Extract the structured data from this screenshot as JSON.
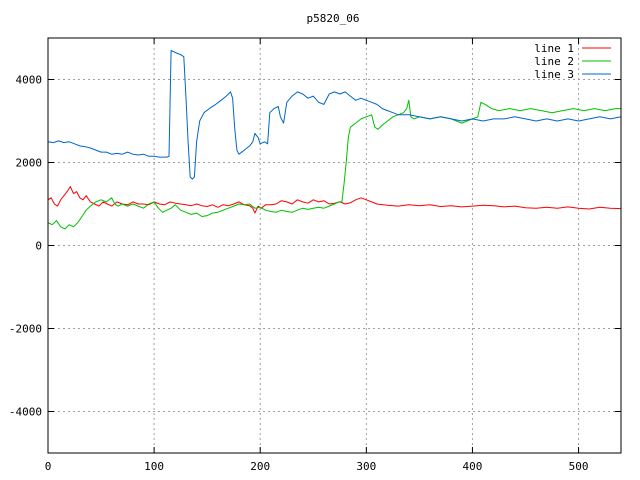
{
  "chart_data": {
    "type": "line",
    "title": "p5820_06",
    "xlabel": "",
    "ylabel": "",
    "xlim": [
      0,
      540
    ],
    "ylim": [
      -5000,
      5000
    ],
    "xticks": [
      0,
      100,
      200,
      300,
      400,
      500
    ],
    "yticks": [
      -4000,
      -2000,
      0,
      2000,
      4000
    ],
    "grid": true,
    "legend_position": "top-right",
    "series": [
      {
        "name": "line 1",
        "color": "#ff0000",
        "points": [
          [
            0,
            1100
          ],
          [
            3,
            1150
          ],
          [
            6,
            1000
          ],
          [
            9,
            950
          ],
          [
            12,
            1100
          ],
          [
            15,
            1200
          ],
          [
            18,
            1300
          ],
          [
            21,
            1420
          ],
          [
            24,
            1250
          ],
          [
            27,
            1300
          ],
          [
            30,
            1150
          ],
          [
            33,
            1100
          ],
          [
            36,
            1200
          ],
          [
            40,
            1050
          ],
          [
            44,
            1000
          ],
          [
            48,
            950
          ],
          [
            52,
            1050
          ],
          [
            56,
            1000
          ],
          [
            60,
            950
          ],
          [
            65,
            1050
          ],
          [
            70,
            1000
          ],
          [
            75,
            980
          ],
          [
            80,
            1050
          ],
          [
            85,
            1000
          ],
          [
            90,
            1000
          ],
          [
            95,
            980
          ],
          [
            100,
            1050
          ],
          [
            105,
            1000
          ],
          [
            110,
            980
          ],
          [
            115,
            1050
          ],
          [
            120,
            1020
          ],
          [
            125,
            1000
          ],
          [
            130,
            980
          ],
          [
            135,
            960
          ],
          [
            140,
            1000
          ],
          [
            145,
            960
          ],
          [
            150,
            940
          ],
          [
            155,
            980
          ],
          [
            160,
            920
          ],
          [
            165,
            980
          ],
          [
            170,
            960
          ],
          [
            175,
            1000
          ],
          [
            180,
            1050
          ],
          [
            185,
            980
          ],
          [
            190,
            960
          ],
          [
            193,
            900
          ],
          [
            195,
            780
          ],
          [
            198,
            950
          ],
          [
            201,
            900
          ],
          [
            205,
            980
          ],
          [
            210,
            980
          ],
          [
            215,
            1000
          ],
          [
            220,
            1080
          ],
          [
            225,
            1050
          ],
          [
            230,
            1000
          ],
          [
            235,
            1100
          ],
          [
            240,
            1050
          ],
          [
            245,
            1020
          ],
          [
            250,
            1100
          ],
          [
            255,
            1050
          ],
          [
            260,
            1080
          ],
          [
            265,
            1000
          ],
          [
            270,
            1020
          ],
          [
            275,
            1050
          ],
          [
            280,
            1000
          ],
          [
            285,
            1030
          ],
          [
            290,
            1100
          ],
          [
            295,
            1150
          ],
          [
            300,
            1100
          ],
          [
            305,
            1050
          ],
          [
            310,
            1000
          ],
          [
            320,
            970
          ],
          [
            330,
            950
          ],
          [
            340,
            980
          ],
          [
            350,
            960
          ],
          [
            360,
            980
          ],
          [
            370,
            940
          ],
          [
            380,
            960
          ],
          [
            390,
            930
          ],
          [
            400,
            950
          ],
          [
            410,
            970
          ],
          [
            420,
            960
          ],
          [
            430,
            930
          ],
          [
            440,
            950
          ],
          [
            450,
            910
          ],
          [
            460,
            900
          ],
          [
            470,
            920
          ],
          [
            480,
            900
          ],
          [
            490,
            930
          ],
          [
            500,
            900
          ],
          [
            510,
            880
          ],
          [
            520,
            920
          ],
          [
            530,
            900
          ],
          [
            540,
            890
          ]
        ]
      },
      {
        "name": "line 2",
        "color": "#00c000",
        "points": [
          [
            0,
            550
          ],
          [
            4,
            500
          ],
          [
            8,
            600
          ],
          [
            12,
            450
          ],
          [
            16,
            400
          ],
          [
            20,
            500
          ],
          [
            24,
            450
          ],
          [
            28,
            550
          ],
          [
            32,
            700
          ],
          [
            36,
            850
          ],
          [
            40,
            950
          ],
          [
            45,
            1050
          ],
          [
            50,
            1100
          ],
          [
            55,
            1050
          ],
          [
            60,
            1150
          ],
          [
            63,
            1000
          ],
          [
            66,
            950
          ],
          [
            70,
            1000
          ],
          [
            75,
            950
          ],
          [
            80,
            1000
          ],
          [
            85,
            950
          ],
          [
            90,
            900
          ],
          [
            95,
            1000
          ],
          [
            100,
            1050
          ],
          [
            104,
            900
          ],
          [
            108,
            800
          ],
          [
            112,
            850
          ],
          [
            116,
            900
          ],
          [
            120,
            980
          ],
          [
            125,
            850
          ],
          [
            130,
            800
          ],
          [
            135,
            750
          ],
          [
            140,
            780
          ],
          [
            145,
            700
          ],
          [
            150,
            720
          ],
          [
            155,
            780
          ],
          [
            160,
            800
          ],
          [
            165,
            850
          ],
          [
            170,
            900
          ],
          [
            175,
            950
          ],
          [
            180,
            1000
          ],
          [
            185,
            980
          ],
          [
            190,
            1000
          ],
          [
            195,
            900
          ],
          [
            200,
            920
          ],
          [
            205,
            850
          ],
          [
            210,
            820
          ],
          [
            215,
            800
          ],
          [
            220,
            850
          ],
          [
            225,
            820
          ],
          [
            230,
            800
          ],
          [
            235,
            850
          ],
          [
            240,
            900
          ],
          [
            245,
            870
          ],
          [
            250,
            900
          ],
          [
            255,
            920
          ],
          [
            260,
            900
          ],
          [
            265,
            950
          ],
          [
            270,
            1000
          ],
          [
            274,
            1050
          ],
          [
            277,
            1050
          ],
          [
            279,
            1500
          ],
          [
            281,
            2000
          ],
          [
            283,
            2600
          ],
          [
            285,
            2850
          ],
          [
            290,
            2950
          ],
          [
            295,
            3050
          ],
          [
            300,
            3100
          ],
          [
            305,
            3150
          ],
          [
            308,
            2850
          ],
          [
            311,
            2800
          ],
          [
            315,
            2900
          ],
          [
            320,
            3000
          ],
          [
            325,
            3100
          ],
          [
            330,
            3150
          ],
          [
            335,
            3200
          ],
          [
            338,
            3300
          ],
          [
            340,
            3500
          ],
          [
            342,
            3100
          ],
          [
            345,
            3050
          ],
          [
            350,
            3100
          ],
          [
            360,
            3050
          ],
          [
            370,
            3100
          ],
          [
            380,
            3050
          ],
          [
            390,
            2950
          ],
          [
            395,
            3000
          ],
          [
            400,
            3050
          ],
          [
            405,
            3100
          ],
          [
            408,
            3450
          ],
          [
            412,
            3400
          ],
          [
            418,
            3300
          ],
          [
            425,
            3250
          ],
          [
            435,
            3300
          ],
          [
            445,
            3250
          ],
          [
            455,
            3300
          ],
          [
            465,
            3250
          ],
          [
            475,
            3200
          ],
          [
            485,
            3250
          ],
          [
            495,
            3300
          ],
          [
            505,
            3250
          ],
          [
            515,
            3300
          ],
          [
            525,
            3250
          ],
          [
            535,
            3300
          ],
          [
            540,
            3300
          ]
        ]
      },
      {
        "name": "line 3",
        "color": "#0066cc",
        "points": [
          [
            0,
            2500
          ],
          [
            5,
            2480
          ],
          [
            10,
            2520
          ],
          [
            15,
            2480
          ],
          [
            20,
            2500
          ],
          [
            25,
            2450
          ],
          [
            30,
            2400
          ],
          [
            35,
            2380
          ],
          [
            40,
            2350
          ],
          [
            45,
            2300
          ],
          [
            50,
            2250
          ],
          [
            55,
            2250
          ],
          [
            60,
            2200
          ],
          [
            65,
            2220
          ],
          [
            70,
            2200
          ],
          [
            75,
            2250
          ],
          [
            80,
            2200
          ],
          [
            85,
            2180
          ],
          [
            90,
            2200
          ],
          [
            95,
            2150
          ],
          [
            100,
            2150
          ],
          [
            105,
            2130
          ],
          [
            110,
            2130
          ],
          [
            112,
            2130
          ],
          [
            114,
            2150
          ],
          [
            116,
            4700
          ],
          [
            120,
            4650
          ],
          [
            125,
            4600
          ],
          [
            128,
            4550
          ],
          [
            130,
            3600
          ],
          [
            132,
            2500
          ],
          [
            134,
            1650
          ],
          [
            136,
            1600
          ],
          [
            138,
            1650
          ],
          [
            140,
            2500
          ],
          [
            143,
            3000
          ],
          [
            147,
            3200
          ],
          [
            152,
            3300
          ],
          [
            158,
            3400
          ],
          [
            163,
            3500
          ],
          [
            168,
            3600
          ],
          [
            172,
            3700
          ],
          [
            174,
            3550
          ],
          [
            176,
            2800
          ],
          [
            178,
            2300
          ],
          [
            180,
            2200
          ],
          [
            185,
            2300
          ],
          [
            190,
            2400
          ],
          [
            193,
            2500
          ],
          [
            195,
            2700
          ],
          [
            198,
            2600
          ],
          [
            200,
            2450
          ],
          [
            204,
            2500
          ],
          [
            207,
            2450
          ],
          [
            209,
            3200
          ],
          [
            213,
            3300
          ],
          [
            217,
            3350
          ],
          [
            219,
            3100
          ],
          [
            222,
            2950
          ],
          [
            225,
            3450
          ],
          [
            230,
            3600
          ],
          [
            235,
            3700
          ],
          [
            240,
            3650
          ],
          [
            245,
            3550
          ],
          [
            250,
            3600
          ],
          [
            255,
            3450
          ],
          [
            260,
            3400
          ],
          [
            265,
            3650
          ],
          [
            270,
            3700
          ],
          [
            275,
            3650
          ],
          [
            280,
            3700
          ],
          [
            285,
            3600
          ],
          [
            290,
            3500
          ],
          [
            295,
            3550
          ],
          [
            300,
            3500
          ],
          [
            305,
            3450
          ],
          [
            310,
            3400
          ],
          [
            315,
            3300
          ],
          [
            320,
            3250
          ],
          [
            325,
            3200
          ],
          [
            330,
            3150
          ],
          [
            340,
            3150
          ],
          [
            350,
            3100
          ],
          [
            360,
            3050
          ],
          [
            370,
            3100
          ],
          [
            380,
            3050
          ],
          [
            390,
            3000
          ],
          [
            400,
            3050
          ],
          [
            410,
            3000
          ],
          [
            420,
            3050
          ],
          [
            430,
            3050
          ],
          [
            440,
            3100
          ],
          [
            450,
            3050
          ],
          [
            460,
            3000
          ],
          [
            470,
            3050
          ],
          [
            480,
            3000
          ],
          [
            490,
            3050
          ],
          [
            500,
            3000
          ],
          [
            510,
            3050
          ],
          [
            520,
            3100
          ],
          [
            530,
            3050
          ],
          [
            540,
            3100
          ]
        ]
      }
    ]
  }
}
